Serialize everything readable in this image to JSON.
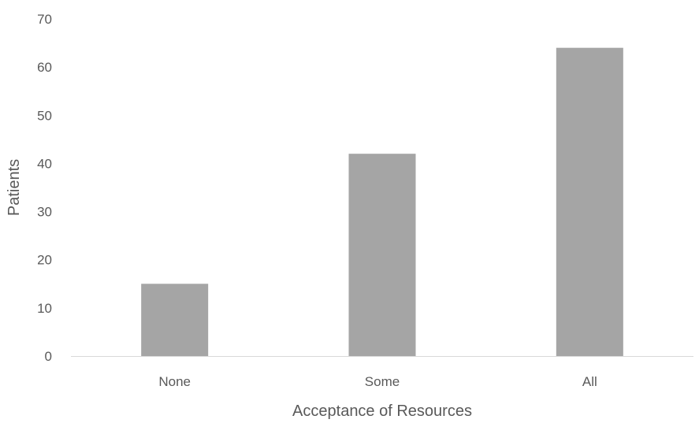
{
  "chart_data": {
    "type": "bar",
    "title": "",
    "categories": [
      "None",
      "Some",
      "All"
    ],
    "series": [
      {
        "values": [
          15,
          42,
          64
        ]
      }
    ],
    "xlabel": "Acceptance of Resources",
    "ylabel": "Patients",
    "ylim": [
      0,
      70
    ],
    "yticks": [
      0,
      10,
      20,
      30,
      40,
      50,
      60,
      70
    ],
    "grid": false,
    "legend": "none",
    "colors": {
      "bar": "#a5a5a5",
      "axis": "#d9d9d9",
      "text": "#595959"
    }
  }
}
